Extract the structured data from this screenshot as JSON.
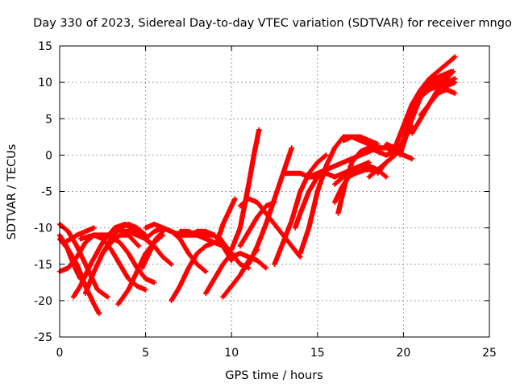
{
  "chart_data": {
    "type": "scatter",
    "title": "Day 330 of 2023, Sidereal Day-to-day VTEC variation (SDTVAR) for receiver mngo",
    "xlabel": "GPS time / hours",
    "ylabel": "SDTVAR / TECUs",
    "xlim": [
      0,
      25
    ],
    "ylim": [
      -25,
      15
    ],
    "x_ticks": [
      "0",
      "5",
      "10",
      "15",
      "20",
      "25"
    ],
    "y_ticks": [
      "-25",
      "-20",
      "-15",
      "-10",
      "-5",
      "0",
      "5",
      "10",
      "15"
    ],
    "grid": true,
    "marker": "plus",
    "series_color": "#ff0000",
    "tracks": [
      {
        "x": [
          0.0,
          0.5,
          1.0,
          1.5,
          2.0,
          2.3
        ],
        "y": [
          -11.5,
          -13.0,
          -15.0,
          -18.0,
          -20.5,
          -21.8
        ]
      },
      {
        "x": [
          0.0,
          0.5,
          1.0,
          1.5,
          2.0
        ],
        "y": [
          -16.0,
          -15.5,
          -14.0,
          -12.0,
          -11.0
        ]
      },
      {
        "x": [
          0.0,
          0.5,
          1.0,
          1.5,
          2.2,
          2.8
        ],
        "y": [
          -9.5,
          -10.5,
          -12.5,
          -15.0,
          -18.5,
          -19.5
        ]
      },
      {
        "x": [
          0.0,
          0.4,
          0.8,
          1.2
        ],
        "y": [
          -11.0,
          -12.5,
          -15.0,
          -17.0
        ]
      },
      {
        "x": [
          0.3,
          1.0,
          1.5,
          2.0
        ],
        "y": [
          -12.0,
          -11.0,
          -10.5,
          -10.0
        ]
      },
      {
        "x": [
          0.8,
          1.2,
          1.8,
          2.5,
          3.2,
          3.8,
          4.5,
          5.2
        ],
        "y": [
          -19.5,
          -18.0,
          -15.0,
          -12.0,
          -10.0,
          -9.5,
          -10.5,
          -12.0
        ]
      },
      {
        "x": [
          1.5,
          2.0,
          2.5,
          3.0,
          3.5,
          4.0,
          4.6
        ],
        "y": [
          -19.0,
          -16.0,
          -13.5,
          -12.0,
          -11.0,
          -11.0,
          -12.5
        ]
      },
      {
        "x": [
          1.2,
          2.0,
          2.8,
          3.5,
          4.0,
          4.5,
          5.0,
          5.5
        ],
        "y": [
          -11.5,
          -11.0,
          -11.0,
          -12.0,
          -13.5,
          -15.5,
          -17.0,
          -17.5
        ]
      },
      {
        "x": [
          2.0,
          2.5,
          3.0,
          3.5,
          4.0,
          4.5,
          5.0
        ],
        "y": [
          -11.0,
          -11.5,
          -13.0,
          -15.0,
          -17.0,
          -18.0,
          -18.5
        ]
      },
      {
        "x": [
          3.4,
          4.0,
          4.5,
          5.0,
          5.5,
          6.0
        ],
        "y": [
          -20.5,
          -18.5,
          -16.0,
          -13.5,
          -12.0,
          -11.0
        ]
      },
      {
        "x": [
          2.5,
          3.0,
          3.5,
          4.0,
          4.5,
          5.0
        ],
        "y": [
          -13.5,
          -11.5,
          -10.0,
          -9.5,
          -10.0,
          -11.0
        ]
      },
      {
        "x": [
          3.5,
          4.0,
          4.5,
          5.0,
          5.5,
          6.0,
          6.5
        ],
        "y": [
          -10.5,
          -10.5,
          -11.0,
          -11.5,
          -12.5,
          -14.0,
          -15.0
        ]
      },
      {
        "x": [
          4.8,
          5.2,
          5.6,
          6.0
        ],
        "y": [
          -15.5,
          -13.5,
          -11.5,
          -10.5
        ]
      },
      {
        "x": [
          5.0,
          5.5,
          6.0,
          6.5,
          7.0,
          7.5,
          8.0,
          8.5
        ],
        "y": [
          -11.5,
          -10.5,
          -10.0,
          -10.5,
          -11.5,
          -13.5,
          -15.0,
          -16.0
        ]
      },
      {
        "x": [
          5.0,
          5.5,
          6.0,
          6.5,
          7.0,
          7.5,
          8.0,
          8.5,
          9.0
        ],
        "y": [
          -10.0,
          -9.5,
          -10.0,
          -10.5,
          -11.0,
          -11.0,
          -11.0,
          -11.0,
          -11.0
        ]
      },
      {
        "x": [
          6.5,
          7.0,
          7.5,
          8.0,
          8.5,
          9.0,
          9.5
        ],
        "y": [
          -20.0,
          -18.0,
          -15.5,
          -13.5,
          -12.5,
          -12.0,
          -12.5
        ]
      },
      {
        "x": [
          7.0,
          7.5,
          8.0,
          8.5,
          9.0
        ],
        "y": [
          -10.5,
          -10.5,
          -11.0,
          -11.5,
          -12.0
        ]
      },
      {
        "x": [
          7.5,
          8.0,
          8.5,
          9.0,
          9.5,
          10.0
        ],
        "y": [
          -11.0,
          -10.5,
          -10.5,
          -11.0,
          -12.5,
          -14.5
        ]
      },
      {
        "x": [
          8.5,
          9.0,
          9.5,
          10.0
        ],
        "y": [
          -19.0,
          -17.0,
          -15.0,
          -13.5
        ]
      },
      {
        "x": [
          9.2,
          9.5,
          10.0,
          10.5,
          11.0
        ],
        "y": [
          -11.0,
          -12.0,
          -13.5,
          -15.0,
          -15.5
        ]
      },
      {
        "x": [
          9.3,
          9.5,
          9.8,
          10.0,
          10.2
        ],
        "y": [
          -11.0,
          -9.5,
          -8.0,
          -7.0,
          -6.0
        ]
      },
      {
        "x": [
          9.5,
          10.0,
          10.5,
          11.0,
          11.5
        ],
        "y": [
          -19.5,
          -18.0,
          -16.5,
          -14.5,
          -13.0
        ]
      },
      {
        "x": [
          10.0,
          10.5,
          11.0,
          11.5,
          12.0
        ],
        "y": [
          -14.0,
          -13.5,
          -14.0,
          -14.5,
          -15.5
        ]
      },
      {
        "x": [
          10.0,
          10.5,
          11.0,
          11.3,
          11.6
        ],
        "y": [
          -13.0,
          -10.0,
          -4.0,
          0.0,
          3.5
        ]
      },
      {
        "x": [
          10.5,
          11.0,
          11.5,
          12.0,
          12.5
        ],
        "y": [
          -12.5,
          -10.5,
          -8.5,
          -7.0,
          -6.5
        ]
      },
      {
        "x": [
          11.0,
          11.5,
          12.0,
          12.5,
          13.0,
          13.5
        ],
        "y": [
          -15.0,
          -12.5,
          -9.5,
          -6.0,
          -2.5,
          1.0
        ]
      },
      {
        "x": [
          10.5,
          11.0,
          11.5,
          12.0,
          12.5,
          13.0,
          13.5,
          14.0
        ],
        "y": [
          -7.0,
          -6.0,
          -6.5,
          -8.0,
          -9.5,
          -11.0,
          -12.5,
          -14.0
        ]
      },
      {
        "x": [
          12.5,
          13.0,
          13.5,
          14.0,
          14.5,
          15.0,
          15.5
        ],
        "y": [
          -15.0,
          -12.0,
          -9.0,
          -5.0,
          -2.5,
          -1.0,
          0.0
        ]
      },
      {
        "x": [
          13.0,
          13.5,
          14.0,
          14.5,
          15.0
        ],
        "y": [
          -2.5,
          -2.5,
          -2.5,
          -3.0,
          -3.0
        ]
      },
      {
        "x": [
          13.7,
          14.0,
          14.5,
          15.0,
          15.5,
          16.0,
          16.5,
          17.0,
          17.5,
          18.0
        ],
        "y": [
          -10.0,
          -8.0,
          -5.0,
          -3.0,
          -2.5,
          -3.0,
          -2.5,
          -2.0,
          -1.5,
          -1.0
        ]
      },
      {
        "x": [
          14.0,
          14.5,
          15.0,
          15.5,
          16.0,
          16.5,
          17.0,
          17.5,
          18.0,
          18.5
        ],
        "y": [
          -13.5,
          -10.0,
          -5.0,
          -1.5,
          1.0,
          2.5,
          2.5,
          2.0,
          1.5,
          1.0
        ]
      },
      {
        "x": [
          14.5,
          15.0,
          15.5,
          16.0,
          16.5,
          17.0,
          17.5,
          18.0,
          18.5,
          19.0,
          19.5,
          20.0
        ],
        "y": [
          -3.0,
          -2.5,
          -2.0,
          -1.5,
          -1.0,
          -0.5,
          0.0,
          0.5,
          1.0,
          1.0,
          0.5,
          0.0
        ]
      },
      {
        "x": [
          16.0,
          16.5,
          17.0,
          17.5,
          18.0,
          18.5,
          19.0
        ],
        "y": [
          -4.0,
          -3.0,
          -2.0,
          -1.5,
          -1.5,
          -2.0,
          -3.0
        ]
      },
      {
        "x": [
          16.5,
          17.0,
          17.5,
          18.0,
          18.5
        ],
        "y": [
          2.0,
          2.5,
          2.5,
          2.0,
          1.5
        ]
      },
      {
        "x": [
          16.0,
          16.4,
          16.8,
          17.2,
          17.8,
          18.3
        ],
        "y": [
          -6.5,
          -4.5,
          -3.0,
          -2.5,
          -2.0,
          -2.0
        ]
      },
      {
        "x": [
          16.2,
          16.6,
          17.0,
          17.5,
          18.0,
          18.5,
          19.0,
          19.5,
          20.0
        ],
        "y": [
          -8.0,
          -4.0,
          -1.0,
          0.5,
          1.0,
          0.5,
          0.0,
          0.5,
          1.5
        ]
      },
      {
        "x": [
          18.0,
          18.5,
          19.0,
          19.5,
          20.0,
          20.5
        ],
        "y": [
          -3.0,
          -2.0,
          -1.0,
          0.0,
          2.0,
          4.0
        ]
      },
      {
        "x": [
          18.5,
          19.0,
          19.5,
          20.0,
          20.5,
          21.0,
          21.5
        ],
        "y": [
          -2.5,
          -1.0,
          0.0,
          2.0,
          5.0,
          8.0,
          10.0
        ]
      },
      {
        "x": [
          19.0,
          19.5,
          20.0,
          20.5
        ],
        "y": [
          1.5,
          1.0,
          0.0,
          -0.5
        ]
      },
      {
        "x": [
          19.5,
          20.0,
          20.5,
          21.0,
          21.5,
          22.0,
          22.5,
          23.0
        ],
        "y": [
          1.0,
          4.0,
          7.0,
          9.0,
          10.5,
          11.5,
          12.5,
          13.5
        ]
      },
      {
        "x": [
          20.0,
          20.5,
          21.0,
          21.5,
          22.0,
          22.5,
          23.0
        ],
        "y": [
          2.0,
          6.0,
          8.0,
          9.0,
          9.5,
          9.5,
          10.0
        ]
      },
      {
        "x": [
          19.8,
          20.2,
          20.6,
          21.0,
          21.5,
          22.0,
          22.5,
          22.9
        ],
        "y": [
          0.0,
          3.0,
          6.0,
          8.0,
          9.5,
          10.0,
          10.5,
          11.5
        ]
      },
      {
        "x": [
          20.5,
          21.0,
          21.5,
          22.0,
          22.5,
          23.0
        ],
        "y": [
          3.0,
          5.0,
          7.0,
          9.0,
          10.0,
          10.5
        ]
      },
      {
        "x": [
          21.0,
          21.5,
          22.0,
          22.5,
          23.0
        ],
        "y": [
          5.5,
          7.0,
          8.5,
          9.0,
          8.5
        ]
      },
      {
        "x": [
          20.8,
          21.3,
          21.8,
          22.3,
          22.8
        ],
        "y": [
          8.0,
          9.5,
          10.5,
          11.0,
          11.5
        ]
      }
    ]
  }
}
